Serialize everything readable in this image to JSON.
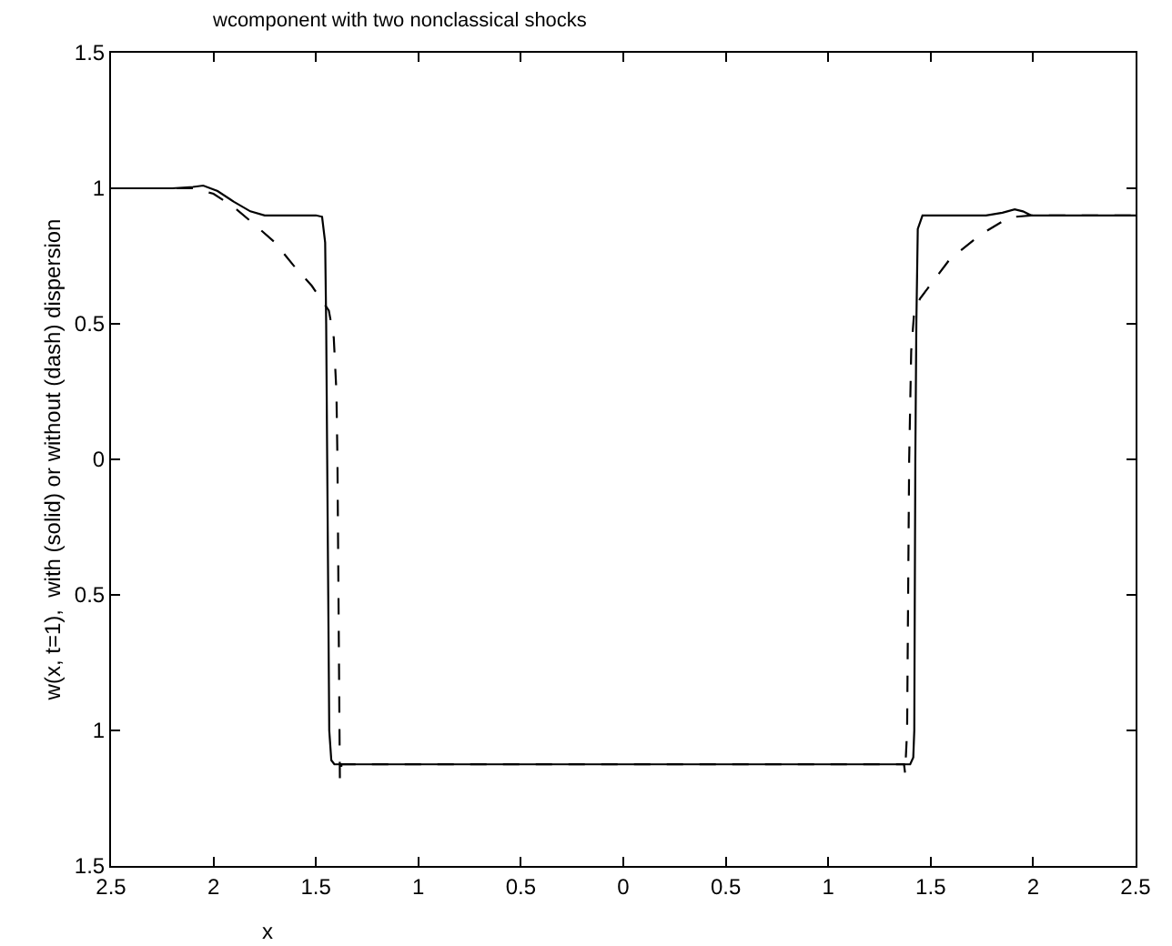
{
  "chart_data": {
    "type": "line",
    "title": "wcomponent with two nonclassical shocks",
    "xlabel": "x",
    "ylabel": "w(x, t=1),  with (solid) or without (dash) dispersion",
    "xlim": [
      -2.5,
      2.5
    ],
    "ylim": [
      -1.5,
      1.5
    ],
    "xticks": [
      {
        "value": -2.5,
        "label": "2.5"
      },
      {
        "value": -2,
        "label": "2"
      },
      {
        "value": -1.5,
        "label": "1.5"
      },
      {
        "value": -1,
        "label": "1"
      },
      {
        "value": -0.5,
        "label": "0.5"
      },
      0,
      0.5,
      1,
      1.5,
      2,
      2.5
    ],
    "yticks": [
      {
        "value": -1.5,
        "label": "1.5"
      },
      {
        "value": -1,
        "label": "1"
      },
      {
        "value": -0.5,
        "label": "0.5"
      },
      0,
      0.5,
      1,
      1.5
    ],
    "marker": "none",
    "series": [
      {
        "color": "#000000",
        "line_style": "solid",
        "x": [
          -2.5,
          -2.2,
          -2.1,
          -2.05,
          -1.98,
          -1.9,
          -1.82,
          -1.75,
          -1.5,
          -1.47,
          -1.455,
          -1.45,
          -1.445,
          -1.44,
          -1.435,
          -1.425,
          -1.41,
          1.4,
          1.415,
          1.42,
          1.425,
          1.43,
          1.437,
          1.46,
          1.77,
          1.85,
          1.91,
          1.95,
          1.99,
          2.5
        ],
        "values": [
          1,
          1,
          1.005,
          1.01,
          0.99,
          0.95,
          0.915,
          0.9,
          0.9,
          0.895,
          0.8,
          0.5,
          0,
          -0.5,
          -1.0,
          -1.11,
          -1.125,
          -1.125,
          -1.1,
          -1.0,
          0,
          0.5,
          0.85,
          0.9,
          0.9,
          0.91,
          0.922,
          0.915,
          0.9,
          0.9
        ]
      },
      {
        "color": "#000000",
        "line_style": "dashed",
        "x": [
          -2.5,
          -2.1,
          -2.0,
          -1.9,
          -1.81,
          -1.7,
          -1.61,
          -1.52,
          -1.437,
          -1.413,
          -1.4,
          -1.395,
          -1.39,
          -1.385,
          -1.383,
          -1.375,
          1.37,
          1.375,
          1.385,
          1.39,
          1.395,
          1.405,
          1.419,
          1.448,
          1.593,
          1.739,
          1.884,
          1.99,
          2.5
        ],
        "values": [
          1,
          1,
          0.98,
          0.93,
          0.873,
          0.8,
          0.716,
          0.64,
          0.549,
          0.449,
          0.249,
          0,
          -0.5,
          -1.0,
          -1.185,
          -1.125,
          -1.125,
          -1.158,
          -1.0,
          -0.5,
          0,
          0.4,
          0.538,
          0.593,
          0.738,
          0.827,
          0.893,
          0.9,
          0.9
        ]
      }
    ]
  }
}
